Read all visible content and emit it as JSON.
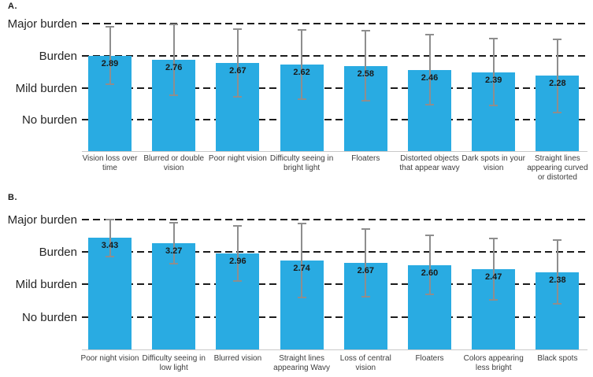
{
  "colors": {
    "bar_fill": "#29ABE2",
    "error_bar": "#8E8E8E",
    "gridline": "#1C1C1C",
    "axis_baseline": "#C9C9C9",
    "value_label": "#1A1A1A",
    "category_label": "#3D3D3D",
    "background": "#FFFFFF"
  },
  "chart_data": [
    {
      "type": "bar",
      "panel_label": "A.",
      "categories": [
        "Vision loss over time",
        "Blurred or double vision",
        "Poor night vision",
        "Difficulty seeing in bright light",
        "Floaters",
        "Distorted objects that appear wavy",
        "Dark spots in your vision",
        "Straight lines appearing curved or distorted"
      ],
      "values": [
        2.89,
        2.76,
        2.67,
        2.62,
        2.58,
        2.46,
        2.39,
        2.28
      ],
      "value_labels": [
        "2.89",
        "2.76",
        "2.67",
        "2.62",
        "2.58",
        "2.46",
        "2.39",
        "2.28"
      ],
      "error_bars_sd": [
        0.9,
        1.1,
        1.05,
        1.07,
        1.08,
        1.08,
        1.04,
        1.13
      ],
      "y_tick_labels": [
        "Major burden",
        "Burden",
        "Mild burden",
        "No burden"
      ],
      "y_tick_values": [
        4,
        3,
        2,
        1
      ],
      "ylim": [
        0,
        4.4
      ],
      "grid": "horizontal-dashed",
      "legend": "none",
      "xlabel": "",
      "ylabel": ""
    },
    {
      "type": "bar",
      "panel_label": "B.",
      "categories": [
        "Poor night vision",
        "Difficulty seeing in low light",
        "Blurred vision",
        "Straight lines appearing Wavy",
        "Loss of central vision",
        "Floaters",
        "Colors appearing less bright",
        "Black spots"
      ],
      "values": [
        3.43,
        3.27,
        2.96,
        2.74,
        2.67,
        2.6,
        2.47,
        2.38
      ],
      "value_labels": [
        "3.43",
        "3.27",
        "2.96",
        "2.74",
        "2.67",
        "2.60",
        "2.47",
        "2.38"
      ],
      "error_bars_sd": [
        0.6,
        0.66,
        0.87,
        1.16,
        1.07,
        0.93,
        0.96,
        1.0
      ],
      "y_tick_labels": [
        "Major burden",
        "Burden",
        "Mild burden",
        "No burden"
      ],
      "y_tick_values": [
        4,
        3,
        2,
        1
      ],
      "ylim": [
        0,
        4.4
      ],
      "grid": "horizontal-dashed",
      "legend": "none",
      "xlabel": "",
      "ylabel": ""
    }
  ]
}
